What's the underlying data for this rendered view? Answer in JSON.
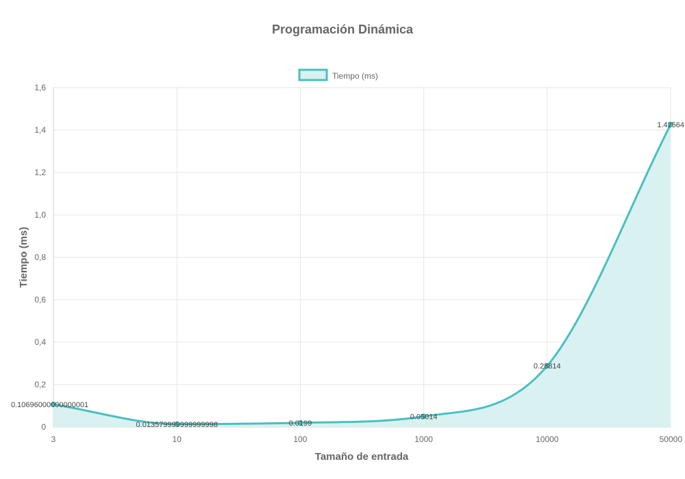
{
  "chart_data": {
    "type": "line",
    "title": "Programación Dinámica",
    "xlabel": "Tamaño de entrada",
    "ylabel": "Tiempo (ms)",
    "categories": [
      "3",
      "10",
      "100",
      "1000",
      "10000",
      "50000"
    ],
    "series": [
      {
        "name": "Tiempo (ms)",
        "values": [
          0.10696,
          0.01358,
          0.0199,
          0.05014,
          0.28814,
          1.42564
        ],
        "data_labels": [
          "0.10696000000000001",
          "0.013579999999999998",
          "0.0199",
          "0.05014",
          "0.28814",
          "1.42564"
        ],
        "color": "#4bbfbf",
        "fill_color": "#d9f1f1",
        "filled": true,
        "smooth": true
      }
    ],
    "ylim": [
      0,
      1.6
    ],
    "y_ticks": [
      "0",
      "0,2",
      "0,4",
      "0,6",
      "0,8",
      "1,0",
      "1,2",
      "1,4",
      "1,6"
    ],
    "y_tick_values": [
      0,
      0.2,
      0.4,
      0.6,
      0.8,
      1.0,
      1.2,
      1.4,
      1.6
    ],
    "grid": true,
    "legend_position": "top"
  }
}
